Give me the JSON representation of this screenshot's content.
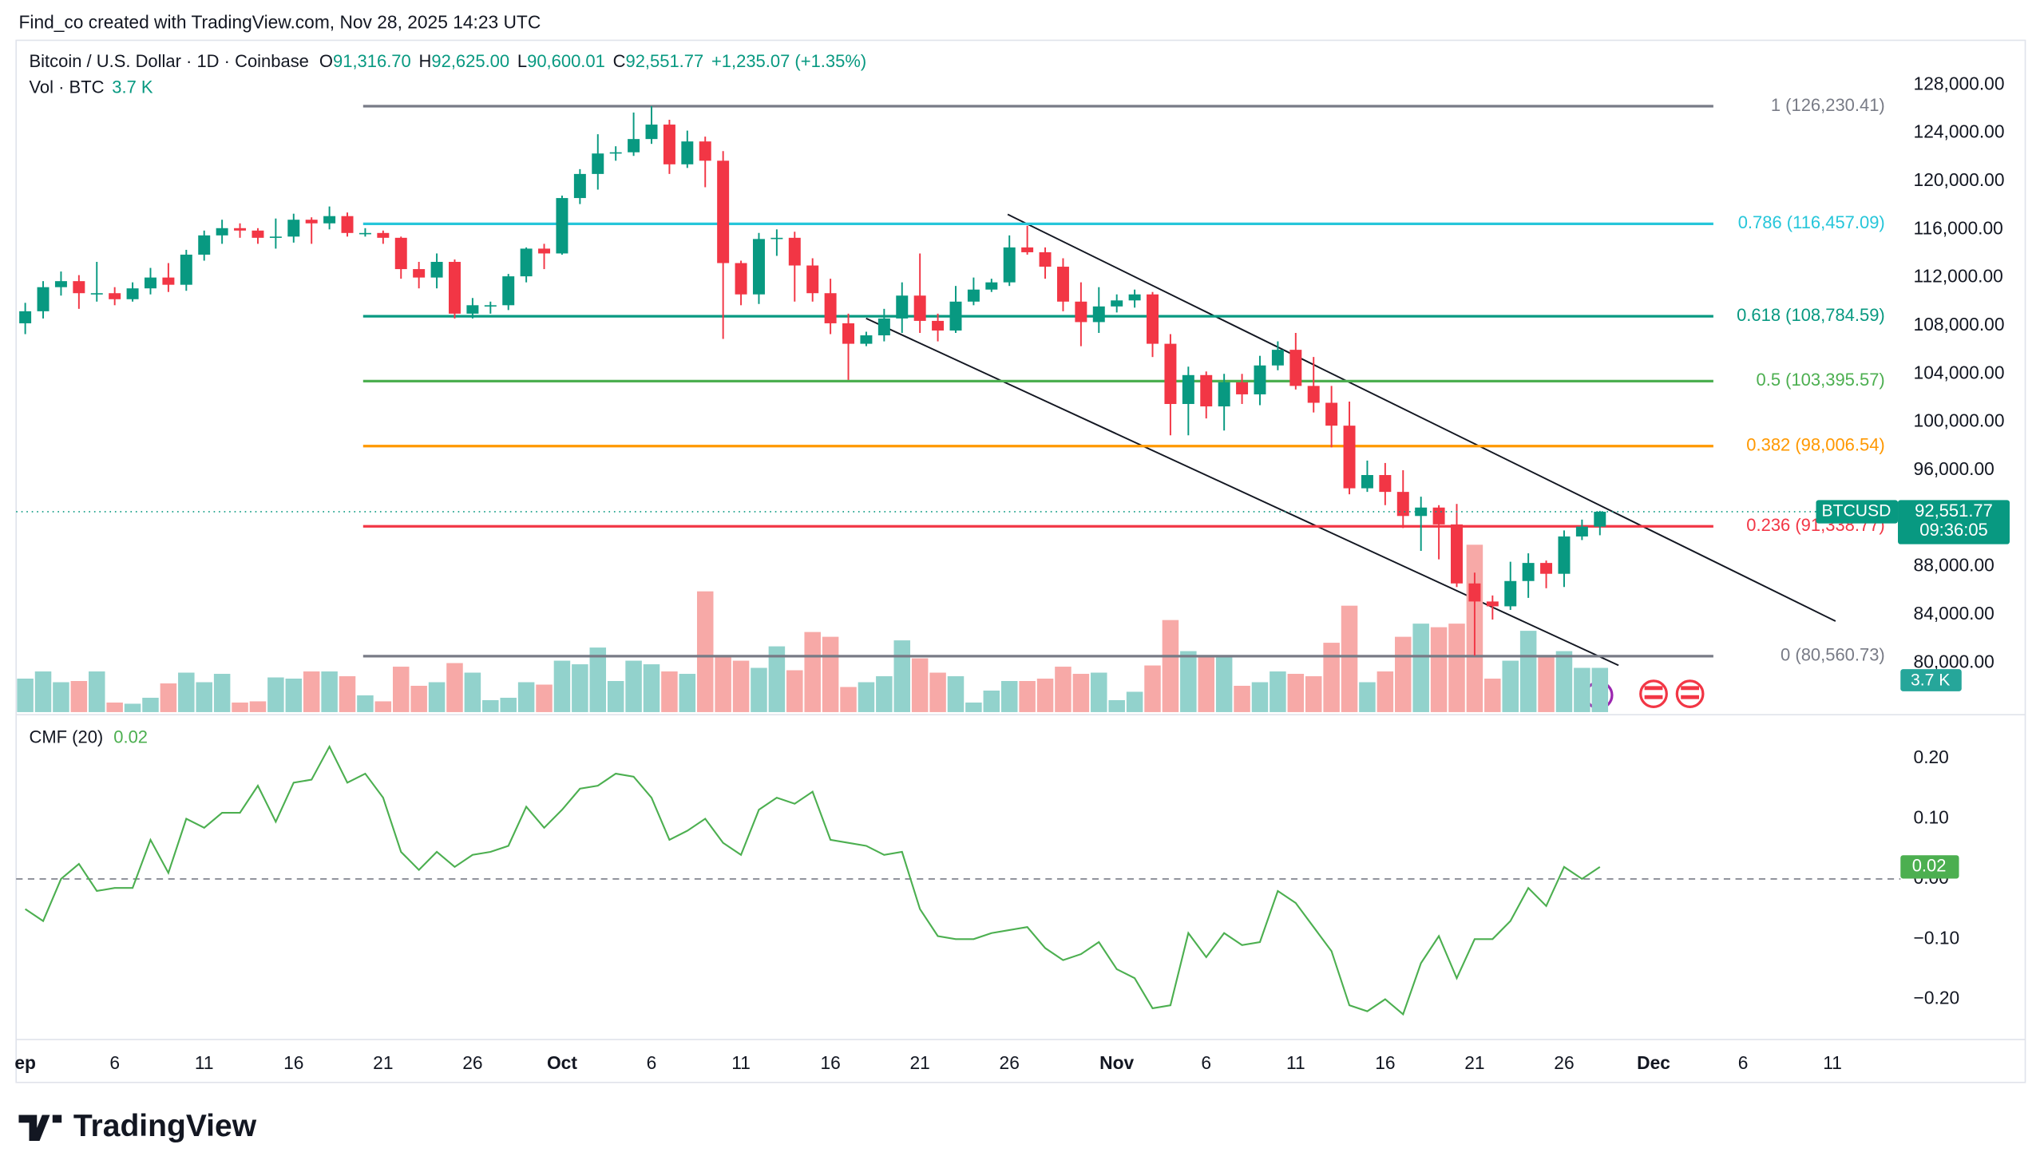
{
  "header": {
    "byline": "Find_co created with TradingView.com, Nov 28, 2025 14:23 UTC",
    "symbol": "Bitcoin / U.S. Dollar · 1D · Coinbase",
    "ohlc": [
      {
        "key": "O",
        "value": "91,316.70"
      },
      {
        "key": "H",
        "value": "92,625.00"
      },
      {
        "key": "L",
        "value": "90,600.01"
      },
      {
        "key": "C",
        "value": "92,551.77"
      }
    ],
    "change": "+1,235.07 (+1.35%)",
    "volume_name": "Vol · BTC",
    "volume_value": "3.7 K"
  },
  "footer": {
    "brand": "TradingView"
  },
  "chart_data": {
    "type": "candlestick",
    "x": [
      "Sep 1",
      "Sep 2",
      "Sep 3",
      "Sep 4",
      "Sep 5",
      "Sep 6",
      "Sep 7",
      "Sep 8",
      "Sep 9",
      "Sep 10",
      "Sep 11",
      "Sep 12",
      "Sep 13",
      "Sep 14",
      "Sep 15",
      "Sep 16",
      "Sep 17",
      "Sep 18",
      "Sep 19",
      "Sep 20",
      "Sep 21",
      "Sep 22",
      "Sep 23",
      "Sep 24",
      "Sep 25",
      "Sep 26",
      "Sep 27",
      "Sep 28",
      "Sep 29",
      "Sep 30",
      "Oct 1",
      "Oct 2",
      "Oct 3",
      "Oct 4",
      "Oct 5",
      "Oct 6",
      "Oct 7",
      "Oct 8",
      "Oct 9",
      "Oct 10",
      "Oct 11",
      "Oct 12",
      "Oct 13",
      "Oct 14",
      "Oct 15",
      "Oct 16",
      "Oct 17",
      "Oct 18",
      "Oct 19",
      "Oct 20",
      "Oct 21",
      "Oct 22",
      "Oct 23",
      "Oct 24",
      "Oct 25",
      "Oct 26",
      "Oct 27",
      "Oct 28",
      "Oct 29",
      "Oct 30",
      "Oct 31",
      "Nov 1",
      "Nov 2",
      "Nov 3",
      "Nov 4",
      "Nov 5",
      "Nov 6",
      "Nov 7",
      "Nov 8",
      "Nov 9",
      "Nov 10",
      "Nov 11",
      "Nov 12",
      "Nov 13",
      "Nov 14",
      "Nov 15",
      "Nov 16",
      "Nov 17",
      "Nov 18",
      "Nov 19",
      "Nov 20",
      "Nov 21",
      "Nov 22",
      "Nov 23",
      "Nov 24",
      "Nov 25",
      "Nov 26",
      "Nov 27",
      "Nov 28"
    ],
    "open": [
      108200,
      109200,
      111200,
      111700,
      110700,
      110700,
      110200,
      111100,
      112000,
      111400,
      113900,
      115500,
      116100,
      115900,
      115300,
      115400,
      116800,
      116500,
      117100,
      115700,
      115700,
      115300,
      112700,
      112000,
      113300,
      109000,
      109700,
      109700,
      112100,
      114400,
      114000,
      118600,
      120600,
      122300,
      122400,
      123500,
      124700,
      121400,
      123300,
      121700,
      113200,
      110600,
      115200,
      115300,
      113000,
      110700,
      108200,
      106500,
      107200,
      108600,
      110500,
      108400,
      107600,
      110000,
      111000,
      111600,
      114500,
      114100,
      112900,
      110000,
      108300,
      109600,
      110100,
      110600,
      106500,
      101500,
      103900,
      101300,
      103300,
      102300,
      104700,
      106000,
      103000,
      101600,
      99700,
      94500,
      95600,
      94200,
      92200,
      92900,
      91500,
      86600,
      85100,
      84700,
      86800,
      88300,
      87400,
      90500,
      91316.7
    ],
    "high": [
      109900,
      111700,
      112500,
      112200,
      113300,
      111200,
      111600,
      112800,
      113200,
      114300,
      115900,
      116800,
      116500,
      116100,
      116900,
      117300,
      117000,
      117900,
      117400,
      116100,
      115900,
      115400,
      113300,
      114000,
      113500,
      110300,
      110000,
      112300,
      114500,
      114800,
      118800,
      121000,
      123900,
      122900,
      125700,
      126230,
      125100,
      124200,
      123700,
      122500,
      113400,
      115700,
      116000,
      115800,
      113600,
      111900,
      109000,
      107500,
      109400,
      111600,
      114000,
      109000,
      111300,
      112000,
      111900,
      115500,
      116300,
      114500,
      113600,
      111600,
      111200,
      110600,
      111000,
      110800,
      107300,
      104600,
      104200,
      104000,
      104000,
      105500,
      106700,
      107400,
      105400,
      103000,
      101700,
      96800,
      96600,
      96000,
      93800,
      93100,
      93200,
      87500,
      85600,
      88400,
      89100,
      88500,
      91000,
      91900,
      92625
    ],
    "low": [
      107300,
      108600,
      110500,
      109400,
      110000,
      109700,
      110000,
      110600,
      110800,
      110900,
      113400,
      114800,
      115300,
      114800,
      114400,
      114900,
      114800,
      116000,
      115400,
      115400,
      114800,
      111900,
      111100,
      111100,
      108600,
      108600,
      109000,
      109300,
      111600,
      112700,
      113900,
      118100,
      119300,
      121700,
      122100,
      123100,
      120600,
      121100,
      119500,
      106900,
      109700,
      109800,
      113800,
      110000,
      110000,
      107300,
      103500,
      106300,
      106700,
      107400,
      107400,
      106700,
      107400,
      109700,
      110800,
      111300,
      113900,
      111900,
      109200,
      106300,
      107400,
      109100,
      109500,
      105400,
      98900,
      98900,
      100300,
      99300,
      101500,
      101400,
      104300,
      102700,
      100800,
      97900,
      94000,
      94200,
      93100,
      91200,
      89300,
      88600,
      86300,
      80600,
      83600,
      84400,
      85400,
      86200,
      86300,
      90200,
      90600.01
    ],
    "close": [
      109200,
      111200,
      111700,
      110700,
      110700,
      110200,
      111100,
      112000,
      111400,
      113900,
      115500,
      116100,
      115900,
      115300,
      115400,
      116800,
      116500,
      117100,
      115700,
      115700,
      115300,
      112700,
      112000,
      113300,
      109000,
      109700,
      109700,
      112100,
      114400,
      114000,
      118600,
      120600,
      122300,
      122400,
      123500,
      124700,
      121400,
      123300,
      121700,
      113200,
      110600,
      115200,
      115300,
      113000,
      110700,
      108200,
      106500,
      107200,
      108600,
      110500,
      108400,
      107600,
      110000,
      111000,
      111600,
      114500,
      114100,
      112900,
      110000,
      108300,
      109600,
      110100,
      110600,
      106500,
      101500,
      103900,
      101300,
      103300,
      102300,
      104700,
      106000,
      103000,
      101600,
      99700,
      94500,
      95600,
      94200,
      92200,
      92900,
      91500,
      86600,
      85100,
      84700,
      86800,
      88300,
      87400,
      90500,
      91316.7,
      92551.77
    ],
    "volume": [
      2.8,
      3.4,
      2.5,
      2.6,
      3.4,
      0.8,
      0.7,
      1.2,
      2.4,
      3.3,
      2.5,
      3.2,
      0.8,
      0.9,
      2.9,
      2.8,
      3.4,
      3.4,
      3.0,
      1.4,
      0.9,
      3.8,
      2.2,
      2.5,
      4.1,
      3.3,
      1.0,
      1.2,
      2.5,
      2.3,
      4.3,
      4.0,
      5.4,
      2.6,
      4.3,
      4.0,
      3.4,
      3.2,
      10.1,
      4.6,
      4.3,
      3.7,
      5.5,
      3.5,
      6.7,
      6.3,
      2.1,
      2.5,
      3.0,
      6.0,
      4.5,
      3.3,
      3.0,
      0.8,
      1.8,
      2.6,
      2.6,
      2.8,
      3.8,
      3.2,
      3.3,
      1.0,
      1.7,
      3.9,
      7.7,
      5.1,
      4.6,
      4.7,
      2.2,
      2.5,
      3.4,
      3.2,
      3.0,
      5.8,
      8.9,
      2.5,
      3.4,
      6.3,
      7.4,
      7.1,
      7.4,
      14.0,
      2.8,
      4.3,
      6.8,
      4.7,
      5.1,
      3.7,
      3.7
    ],
    "up_color": "#089981",
    "down_color": "#f23645",
    "volume_up_color": "#92d2cc",
    "volume_down_color": "#f7a9a7",
    "xlim": [
      "Sep 1",
      "Dec 14"
    ],
    "xticks": [
      {
        "value": "Sep 1",
        "label": "ep"
      },
      {
        "value": "Sep 6",
        "label": "6"
      },
      {
        "value": "Sep 11",
        "label": "11"
      },
      {
        "value": "Sep 16",
        "label": "16"
      },
      {
        "value": "Sep 21",
        "label": "21"
      },
      {
        "value": "Sep 26",
        "label": "26"
      },
      {
        "value": "Oct 1",
        "label": "Oct"
      },
      {
        "value": "Oct 6",
        "label": "6"
      },
      {
        "value": "Oct 11",
        "label": "11"
      },
      {
        "value": "Oct 16",
        "label": "16"
      },
      {
        "value": "Oct 21",
        "label": "21"
      },
      {
        "value": "Oct 26",
        "label": "26"
      },
      {
        "value": "Nov 1",
        "label": "Nov"
      },
      {
        "value": "Nov 6",
        "label": "6"
      },
      {
        "value": "Nov 11",
        "label": "11"
      },
      {
        "value": "Nov 16",
        "label": "16"
      },
      {
        "value": "Nov 21",
        "label": "21"
      },
      {
        "value": "Nov 26",
        "label": "26"
      },
      {
        "value": "Dec 1",
        "label": "Dec"
      },
      {
        "value": "Dec 6",
        "label": "6"
      },
      {
        "value": "Dec 11",
        "label": "11"
      }
    ],
    "ylim": [
      75700,
      131700
    ],
    "yticks": [
      {
        "value": 80000,
        "label": "80,000.00"
      },
      {
        "value": 84000,
        "label": "84,000.00"
      },
      {
        "value": 88000,
        "label": "88,000.00"
      },
      {
        "value": 96000,
        "label": "96,000.00"
      },
      {
        "value": 100000,
        "label": "100,000.00"
      },
      {
        "value": 104000,
        "label": "104,000.00"
      },
      {
        "value": 108000,
        "label": "108,000.00"
      },
      {
        "value": 112000,
        "label": "112,000.00"
      },
      {
        "value": 116000,
        "label": "116,000.00"
      },
      {
        "value": 120000,
        "label": "120,000.00"
      },
      {
        "value": 124000,
        "label": "124,000.00"
      },
      {
        "value": 128000,
        "label": "128,000.00"
      }
    ],
    "grid": false,
    "fib_levels": [
      {
        "value": 126230.41,
        "label": "1 (126,230.41)",
        "color": "#787b86"
      },
      {
        "value": 116457.09,
        "label": "0.786 (116,457.09)",
        "color": "#26c6da"
      },
      {
        "value": 108784.59,
        "label": "0.618 (108,784.59)",
        "color": "#089981"
      },
      {
        "value": 103395.57,
        "label": "0.5 (103,395.57)",
        "color": "#4caf50"
      },
      {
        "value": 98006.54,
        "label": "0.382 (98,006.54)",
        "color": "#ff9800"
      },
      {
        "value": 91338.77,
        "label": "0.236 (91,338.77)",
        "color": "#f23645"
      },
      {
        "value": 80560.73,
        "label": "0 (80,560.73)",
        "color": "#787b86"
      }
    ],
    "last_price": {
      "symbol": "BTCUSD",
      "value": 92551.77,
      "label": "92,551.77",
      "countdown": "09:36:05",
      "color": "#089981"
    },
    "cmf": {
      "name": "CMF (20)",
      "last_label": "0.02",
      "color": "#4caf50",
      "ylim": [
        -0.267,
        0.273
      ],
      "yticks": [
        {
          "value": 0.2,
          "label": "0.20"
        },
        {
          "value": 0.1,
          "label": "0.10"
        },
        {
          "value": 0,
          "label": "0.00"
        },
        {
          "value": -0.1,
          "label": "−0.10"
        },
        {
          "value": -0.2,
          "label": "−0.20"
        }
      ],
      "values": [
        -0.05,
        -0.07,
        0.0,
        0.025,
        -0.02,
        -0.015,
        -0.015,
        0.065,
        0.01,
        0.1,
        0.085,
        0.11,
        0.11,
        0.155,
        0.095,
        0.16,
        0.165,
        0.22,
        0.16,
        0.175,
        0.135,
        0.045,
        0.015,
        0.045,
        0.02,
        0.04,
        0.045,
        0.055,
        0.12,
        0.085,
        0.115,
        0.15,
        0.155,
        0.175,
        0.17,
        0.135,
        0.065,
        0.08,
        0.1,
        0.06,
        0.04,
        0.115,
        0.135,
        0.125,
        0.145,
        0.065,
        0.06,
        0.055,
        0.04,
        0.045,
        -0.05,
        -0.095,
        -0.1,
        -0.1,
        -0.09,
        -0.085,
        -0.08,
        -0.115,
        -0.135,
        -0.125,
        -0.105,
        -0.15,
        -0.165,
        -0.215,
        -0.21,
        -0.09,
        -0.13,
        -0.09,
        -0.11,
        -0.105,
        -0.02,
        -0.04,
        -0.08,
        -0.12,
        -0.21,
        -0.22,
        -0.2,
        -0.225,
        -0.14,
        -0.095,
        -0.165,
        -0.1,
        -0.1,
        -0.07,
        -0.015,
        -0.045,
        0.02,
        0.0,
        0.02
      ]
    }
  }
}
